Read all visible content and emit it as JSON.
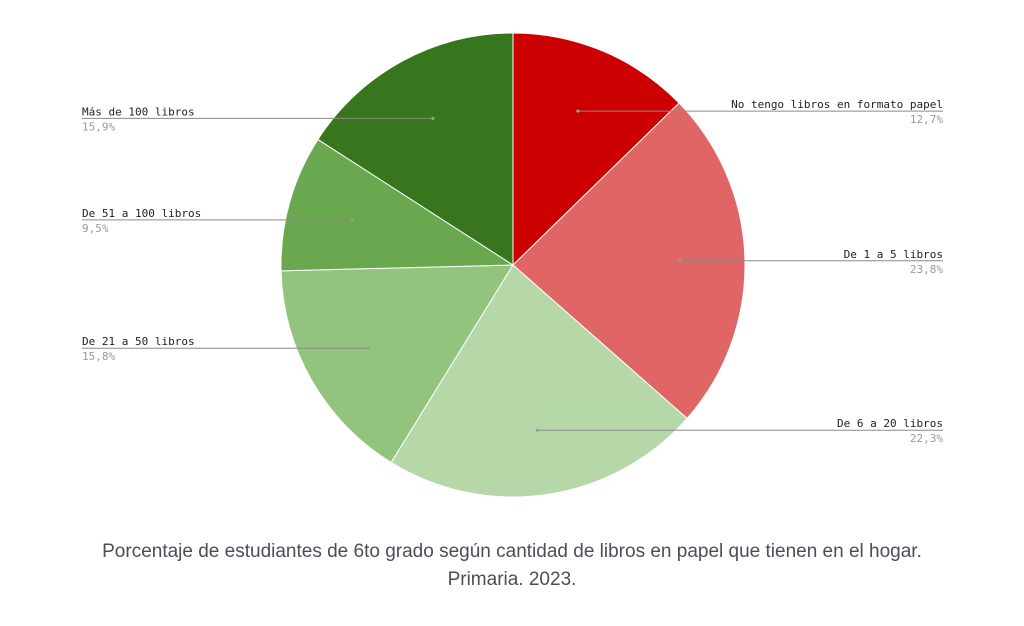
{
  "caption": "Porcentaje de estudiantes de 6to grado según cantidad de libros en papel que tienen en el hogar. Primaria. 2023.",
  "chart_data": {
    "type": "pie",
    "start_angle_deg": 0,
    "direction": "clockwise",
    "slices": [
      {
        "label": "No tengo libros en formato papel",
        "value": 12.7,
        "value_label": "12,7%",
        "color": "#cc0000"
      },
      {
        "label": "De 1 a 5 libros",
        "value": 23.8,
        "value_label": "23,8%",
        "color": "#e06666"
      },
      {
        "label": "De 6 a 20 libros",
        "value": 22.3,
        "value_label": "22,3%",
        "color": "#b6d7a8"
      },
      {
        "label": "De 21 a 50 libros",
        "value": 15.8,
        "value_label": "15,8%",
        "color": "#93c47d"
      },
      {
        "label": "De 51 a 100 libros",
        "value": 9.5,
        "value_label": "9,5%",
        "color": "#6aa84f"
      },
      {
        "label": "Más de 100 libros",
        "value": 15.9,
        "value_label": "15,9%",
        "color": "#38761d"
      }
    ]
  }
}
